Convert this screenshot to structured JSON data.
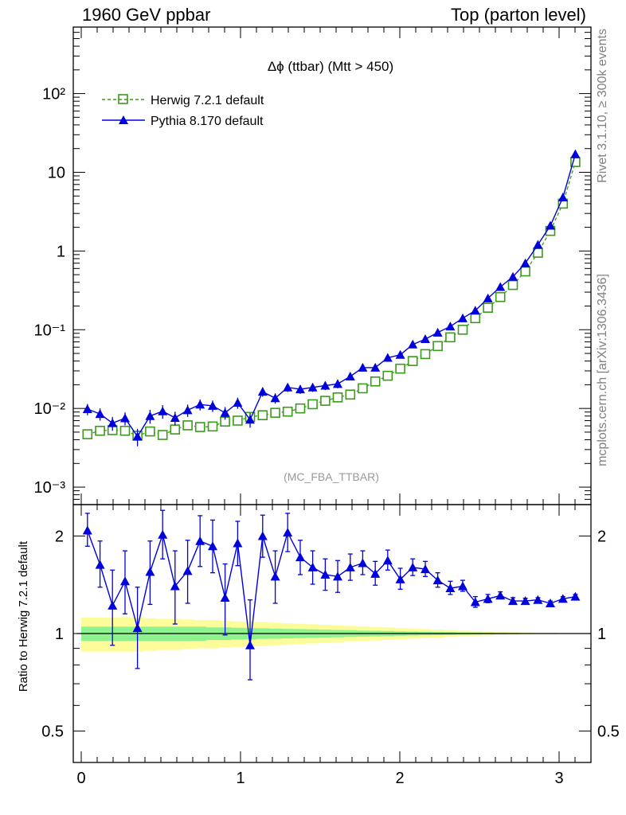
{
  "header": {
    "left": "1960 GeV ppbar",
    "right": "Top (parton level)"
  },
  "side_labels": {
    "events": "Rivet 3.1.10, ≥ 300k events",
    "source": "mcplots.cern.ch [arXiv:1306.3436]"
  },
  "analysis_tag": "(MC_FBA_TTBAR)",
  "colors": {
    "herwig": "#3a9a1a",
    "pythia": "#0000dd",
    "band_inner": "#8ef28e",
    "band_outer": "#fcfc9a"
  },
  "chart_data": [
    {
      "type": "scatter",
      "title": "Δϕ (ttbar) (Mtt > 450)",
      "xlabel": "",
      "ylabel": "",
      "xlim": [
        -0.05,
        3.2
      ],
      "ylim": [
        0.0006,
        700
      ],
      "yscale": "log",
      "ytick_labels": [
        "10⁻³",
        "10⁻²",
        "10⁻¹",
        "1",
        "10",
        "10²"
      ],
      "legend": {
        "position": "top-left",
        "entries": [
          "Herwig 7.2.1 default",
          "Pythia 8.170 default"
        ]
      },
      "x": [
        0.039,
        0.118,
        0.196,
        0.275,
        0.353,
        0.432,
        0.511,
        0.589,
        0.668,
        0.746,
        0.825,
        0.903,
        0.982,
        1.06,
        1.139,
        1.218,
        1.296,
        1.375,
        1.453,
        1.532,
        1.61,
        1.689,
        1.767,
        1.846,
        1.924,
        2.003,
        2.081,
        2.16,
        2.238,
        2.317,
        2.395,
        2.474,
        2.553,
        2.631,
        2.71,
        2.788,
        2.867,
        2.945,
        3.024,
        3.102
      ],
      "series": [
        {
          "name": "Herwig 7.2.1 default",
          "values": [
            0.0047,
            0.0052,
            0.0053,
            0.0052,
            0.0045,
            0.0051,
            0.0046,
            0.0054,
            0.0061,
            0.0058,
            0.0059,
            0.0068,
            0.007,
            0.0078,
            0.0082,
            0.0088,
            0.0091,
            0.01,
            0.0113,
            0.0125,
            0.0138,
            0.015,
            0.018,
            0.022,
            0.026,
            0.032,
            0.04,
            0.049,
            0.062,
            0.08,
            0.1,
            0.14,
            0.19,
            0.26,
            0.37,
            0.55,
            0.95,
            1.8,
            4.0,
            13.5
          ]
        },
        {
          "name": "Pythia 8.170 default",
          "values": [
            0.0098,
            0.0085,
            0.0065,
            0.0075,
            0.0044,
            0.008,
            0.0092,
            0.0076,
            0.0095,
            0.0112,
            0.0108,
            0.0088,
            0.0118,
            0.0072,
            0.0163,
            0.0135,
            0.0185,
            0.0175,
            0.0185,
            0.0195,
            0.0205,
            0.0255,
            0.033,
            0.033,
            0.044,
            0.048,
            0.065,
            0.076,
            0.092,
            0.11,
            0.14,
            0.175,
            0.25,
            0.35,
            0.47,
            0.7,
            1.2,
            2.1,
            4.8,
            17.0
          ],
          "errors": [
            0.0016,
            0.0015,
            0.0013,
            0.0014,
            0.0011,
            0.0016,
            0.0018,
            0.0015,
            0.0017,
            0.0018,
            0.0018,
            0.0016,
            0.0019,
            0.0015,
            0.0022,
            0.002,
            0.0023,
            0.0022,
            0.0023,
            0.0024,
            0.0025,
            0.0028,
            0.0032,
            0.0032,
            0.0037,
            0.0039,
            0.0046,
            0.005,
            0.0055,
            0.006,
            0.007,
            0.008,
            0.01,
            0.012,
            0.014,
            0.017,
            0.023,
            0.03,
            0.045,
            0.09
          ]
        }
      ]
    },
    {
      "type": "scatter",
      "title": "",
      "xlabel": "",
      "ylabel": "Ratio to Herwig 7.2.1 default",
      "xlim": [
        -0.05,
        3.2
      ],
      "ylim": [
        0.4,
        2.5
      ],
      "yscale": "log",
      "yticks": [
        0.5,
        1,
        2
      ],
      "ytick_labels": [
        "0.5",
        "1",
        "2"
      ],
      "xticks": [
        0,
        1,
        2,
        3
      ],
      "xtick_labels": [
        "0",
        "1",
        "2",
        "3"
      ],
      "reference_line": 1,
      "x": [
        0.039,
        0.118,
        0.196,
        0.275,
        0.353,
        0.432,
        0.511,
        0.589,
        0.668,
        0.746,
        0.825,
        0.903,
        0.982,
        1.06,
        1.139,
        1.218,
        1.296,
        1.375,
        1.453,
        1.532,
        1.61,
        1.689,
        1.767,
        1.846,
        1.924,
        2.003,
        2.081,
        2.16,
        2.238,
        2.317,
        2.395,
        2.474,
        2.553,
        2.631,
        2.71,
        2.788,
        2.867,
        2.945,
        3.024,
        3.102
      ],
      "series": [
        {
          "name": "Pythia 8.170 default",
          "values": [
            2.08,
            1.63,
            1.22,
            1.45,
            1.04,
            1.55,
            2.02,
            1.4,
            1.56,
            1.93,
            1.86,
            1.29,
            1.9,
            0.92,
            2.0,
            1.5,
            2.05,
            1.72,
            1.6,
            1.52,
            1.5,
            1.6,
            1.65,
            1.53,
            1.68,
            1.47,
            1.6,
            1.58,
            1.46,
            1.38,
            1.4,
            1.25,
            1.28,
            1.31,
            1.26,
            1.26,
            1.27,
            1.24,
            1.28,
            1.3
          ],
          "err_up": [
            0.27,
            0.3,
            0.35,
            0.35,
            0.35,
            0.38,
            0.38,
            0.4,
            0.38,
            0.38,
            0.38,
            0.35,
            0.32,
            0.35,
            0.32,
            0.3,
            0.3,
            0.22,
            0.2,
            0.18,
            0.18,
            0.16,
            0.15,
            0.14,
            0.13,
            0.12,
            0.1,
            0.09,
            0.08,
            0.07,
            0.06,
            0.05,
            0.04,
            0.035,
            0.03,
            0.025,
            0.02,
            0.02,
            0.02,
            0.02
          ],
          "err_down": [
            0.22,
            0.24,
            0.3,
            0.3,
            0.26,
            0.32,
            0.32,
            0.33,
            0.32,
            0.32,
            0.32,
            0.3,
            0.28,
            0.2,
            0.28,
            0.26,
            0.26,
            0.2,
            0.18,
            0.16,
            0.16,
            0.14,
            0.13,
            0.12,
            0.11,
            0.1,
            0.09,
            0.08,
            0.07,
            0.06,
            0.05,
            0.045,
            0.035,
            0.03,
            0.025,
            0.02,
            0.02,
            0.02,
            0.02,
            0.02
          ]
        }
      ],
      "uncertainty_band": {
        "inner_half_width": [
          0.05,
          0.05,
          0.05,
          0.05,
          0.05,
          0.05,
          0.05,
          0.05,
          0.05,
          0.05,
          0.045,
          0.045,
          0.042,
          0.04,
          0.038,
          0.036,
          0.034,
          0.032,
          0.03,
          0.028,
          0.026,
          0.024,
          0.022,
          0.02,
          0.018,
          0.016,
          0.014,
          0.012,
          0.011,
          0.01,
          0.008,
          0.007,
          0.006,
          0.005,
          0.004,
          0.003,
          0.002,
          0.002,
          0.001,
          0.001
        ],
        "outer_half_width": [
          0.12,
          0.12,
          0.12,
          0.12,
          0.12,
          0.115,
          0.11,
          0.11,
          0.105,
          0.1,
          0.1,
          0.095,
          0.09,
          0.088,
          0.085,
          0.08,
          0.076,
          0.072,
          0.068,
          0.064,
          0.06,
          0.056,
          0.052,
          0.048,
          0.044,
          0.04,
          0.036,
          0.032,
          0.028,
          0.024,
          0.02,
          0.017,
          0.014,
          0.011,
          0.009,
          0.007,
          0.005,
          0.004,
          0.003,
          0.002
        ]
      }
    }
  ]
}
